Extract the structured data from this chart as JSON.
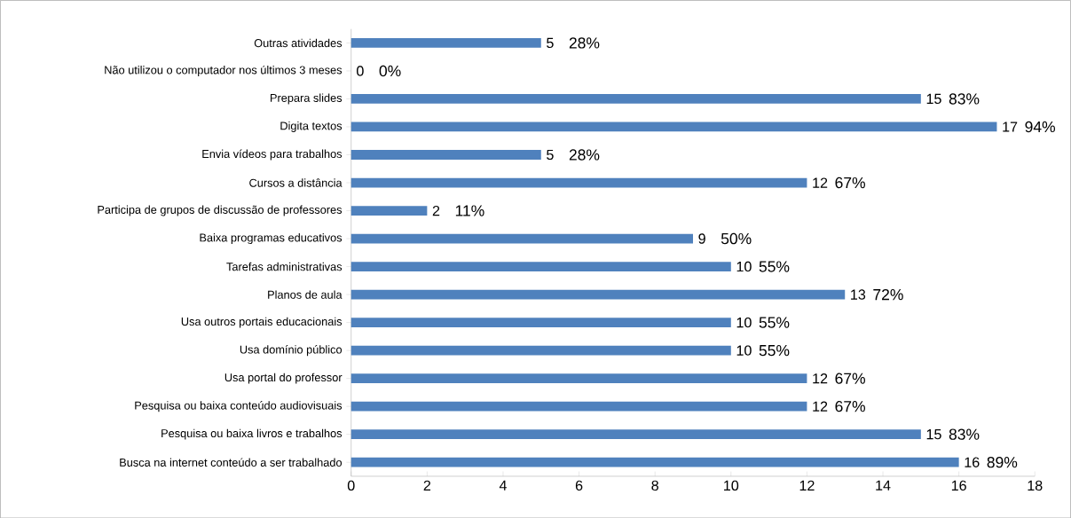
{
  "chart_data": {
    "type": "bar",
    "orientation": "horizontal",
    "categories": [
      "Outras atividades",
      "Não utilizou o computador nos últimos 3 meses",
      "Prepara slides",
      "Digita textos",
      "Envia vídeos para trabalhos",
      "Cursos a distância",
      "Participa de grupos de discussão de professores",
      "Baixa programas educativos",
      "Tarefas administrativas",
      "Planos de aula",
      "Usa outros portais educacionais",
      "Usa domínio público",
      "Usa portal do professor",
      "Pesquisa ou baixa conteúdo audiovisuais",
      "Pesquisa ou baixa livros e trabalhos",
      "Busca na internet conteúdo a ser trabalhado"
    ],
    "values": [
      5,
      0,
      15,
      17,
      5,
      12,
      2,
      9,
      10,
      13,
      10,
      10,
      12,
      12,
      15,
      16
    ],
    "color": "#4f81bd",
    "xlim": [
      0,
      18
    ],
    "xticks": [
      0,
      2,
      4,
      6,
      8,
      10,
      12,
      14,
      16,
      18
    ],
    "data_labels": true,
    "annotations": [
      {
        "text": "28%",
        "x": 5,
        "y": "Outras atividades"
      },
      {
        "text": "0%",
        "x": 0,
        "y": "Não utilizou o computador nos últimos 3 meses"
      },
      {
        "text": "83%",
        "x": 15,
        "y": "Prepara slides"
      },
      {
        "text": "94%",
        "x": 17,
        "y": "Digita textos"
      },
      {
        "text": "28%",
        "x": 5,
        "y": "Envia vídeos para trabalhos"
      },
      {
        "text": "67%",
        "x": 12,
        "y": "Cursos a distância"
      },
      {
        "text": "11%",
        "x": 2,
        "y": "Participa de grupos de discussão de professores"
      },
      {
        "text": "50%",
        "x": 9,
        "y": "Baixa programas educativos"
      },
      {
        "text": "55%",
        "x": 10,
        "y": "Tarefas administrativas"
      },
      {
        "text": "72%",
        "x": 13,
        "y": "Planos de aula"
      },
      {
        "text": "55%",
        "x": 10,
        "y": "Usa outros portais educacionais"
      },
      {
        "text": "55%",
        "x": 10,
        "y": "Usa domínio público"
      },
      {
        "text": "67%",
        "x": 12,
        "y": "Usa portal do professor"
      },
      {
        "text": "67%",
        "x": 12,
        "y": "Pesquisa ou baixa conteúdo audiovisuais"
      },
      {
        "text": "83%",
        "x": 15,
        "y": "Pesquisa ou baixa livros e trabalhos"
      },
      {
        "text": "89%",
        "x": 16,
        "y": "Busca na internet conteúdo a ser trabalhado"
      }
    ]
  }
}
